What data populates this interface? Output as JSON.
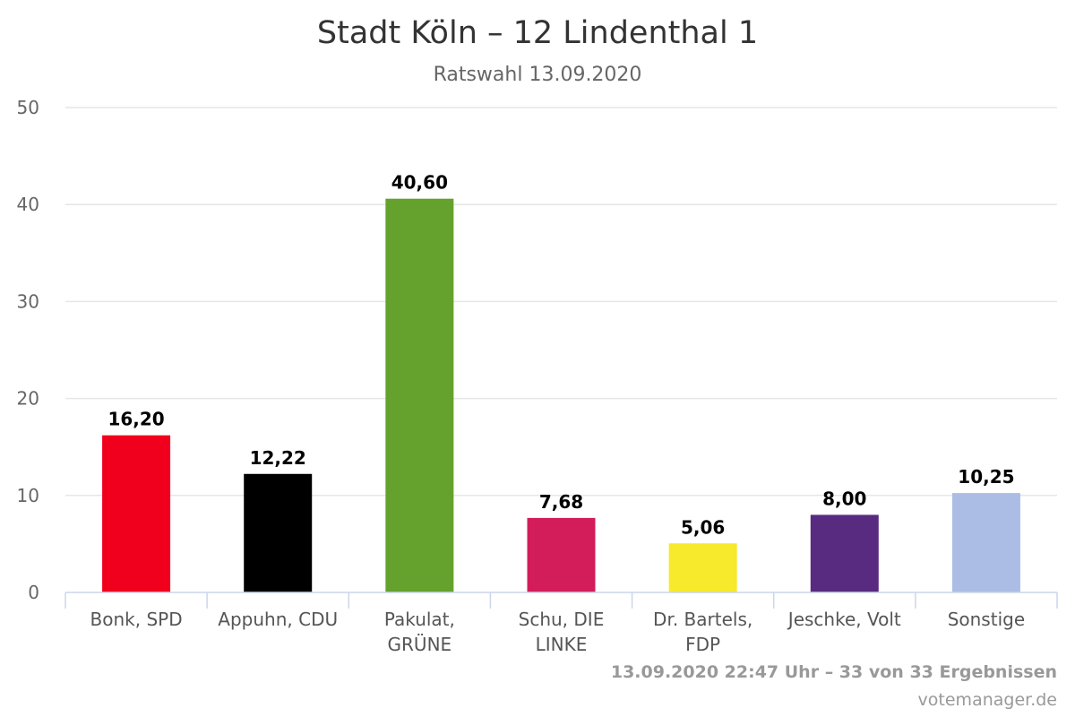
{
  "chart_data": {
    "type": "bar",
    "title": "Stadt Köln – 12 Lindenthal 1",
    "subtitle": "Ratswahl 13.09.2020",
    "categories": [
      [
        "Bonk, SPD"
      ],
      [
        "Appuhn, CDU"
      ],
      [
        "Pakulat,",
        "GRÜNE"
      ],
      [
        "Schu, DIE",
        "LINKE"
      ],
      [
        "Dr. Bartels,",
        "FDP"
      ],
      [
        "Jeschke, Volt"
      ],
      [
        "Sonstige"
      ]
    ],
    "values": [
      16.2,
      12.22,
      40.6,
      7.68,
      5.06,
      8.0,
      10.25
    ],
    "value_labels": [
      "16,20",
      "12,22",
      "40,60",
      "7,68",
      "5,06",
      "8,00",
      "10,25"
    ],
    "colors": [
      "#f0001c",
      "#000000",
      "#64a12d",
      "#d21d5a",
      "#f7e92b",
      "#582a80",
      "#abbde4"
    ],
    "ylim": [
      0,
      50
    ],
    "yticks": [
      0,
      10,
      20,
      30,
      40,
      50
    ],
    "grid": true,
    "legend": "none"
  },
  "footer": {
    "status": "13.09.2020 22:47 Uhr – 33 von 33 Ergebnissen",
    "credit": "votemanager.de"
  },
  "colors": {
    "grid": "#e6e6e6",
    "axis": "#ccd6eb"
  }
}
